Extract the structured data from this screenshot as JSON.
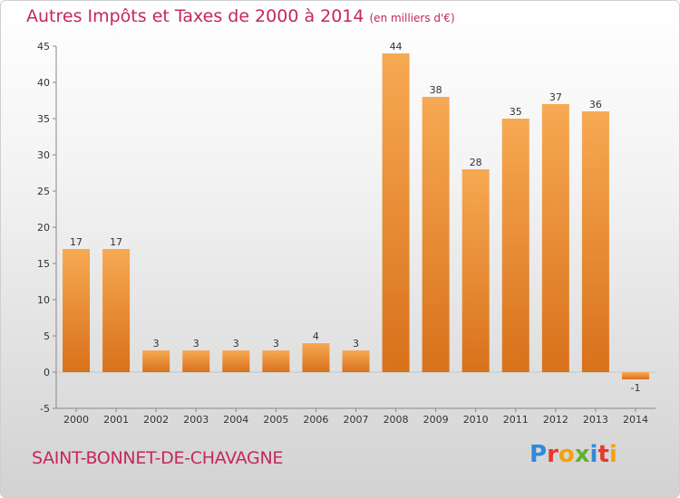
{
  "chart_data": {
    "type": "bar",
    "title": "Autres Impôts et Taxes de 2000 à 2014",
    "unit": "(en milliers d'€)",
    "categories": [
      "2000",
      "2001",
      "2002",
      "2003",
      "2004",
      "2005",
      "2006",
      "2007",
      "2008",
      "2009",
      "2010",
      "2011",
      "2012",
      "2013",
      "2014"
    ],
    "values": [
      17,
      17,
      3,
      3,
      3,
      3,
      4,
      3,
      44,
      38,
      28,
      35,
      37,
      36,
      -1
    ],
    "ylim": [
      -5,
      45
    ],
    "yticks": [
      -5,
      0,
      5,
      10,
      15,
      20,
      25,
      30,
      35,
      40,
      45
    ],
    "grid": false,
    "bar_color": "#f0943a"
  },
  "footer": {
    "commune": "SAINT-BONNET-DE-CHAVAGNE",
    "logo_text": "Proxiti",
    "logo_colors": [
      "#2e8bd8",
      "#e8392c",
      "#f2a20c",
      "#5fb230",
      "#2e8bd8",
      "#e8392c",
      "#f2a20c"
    ]
  }
}
